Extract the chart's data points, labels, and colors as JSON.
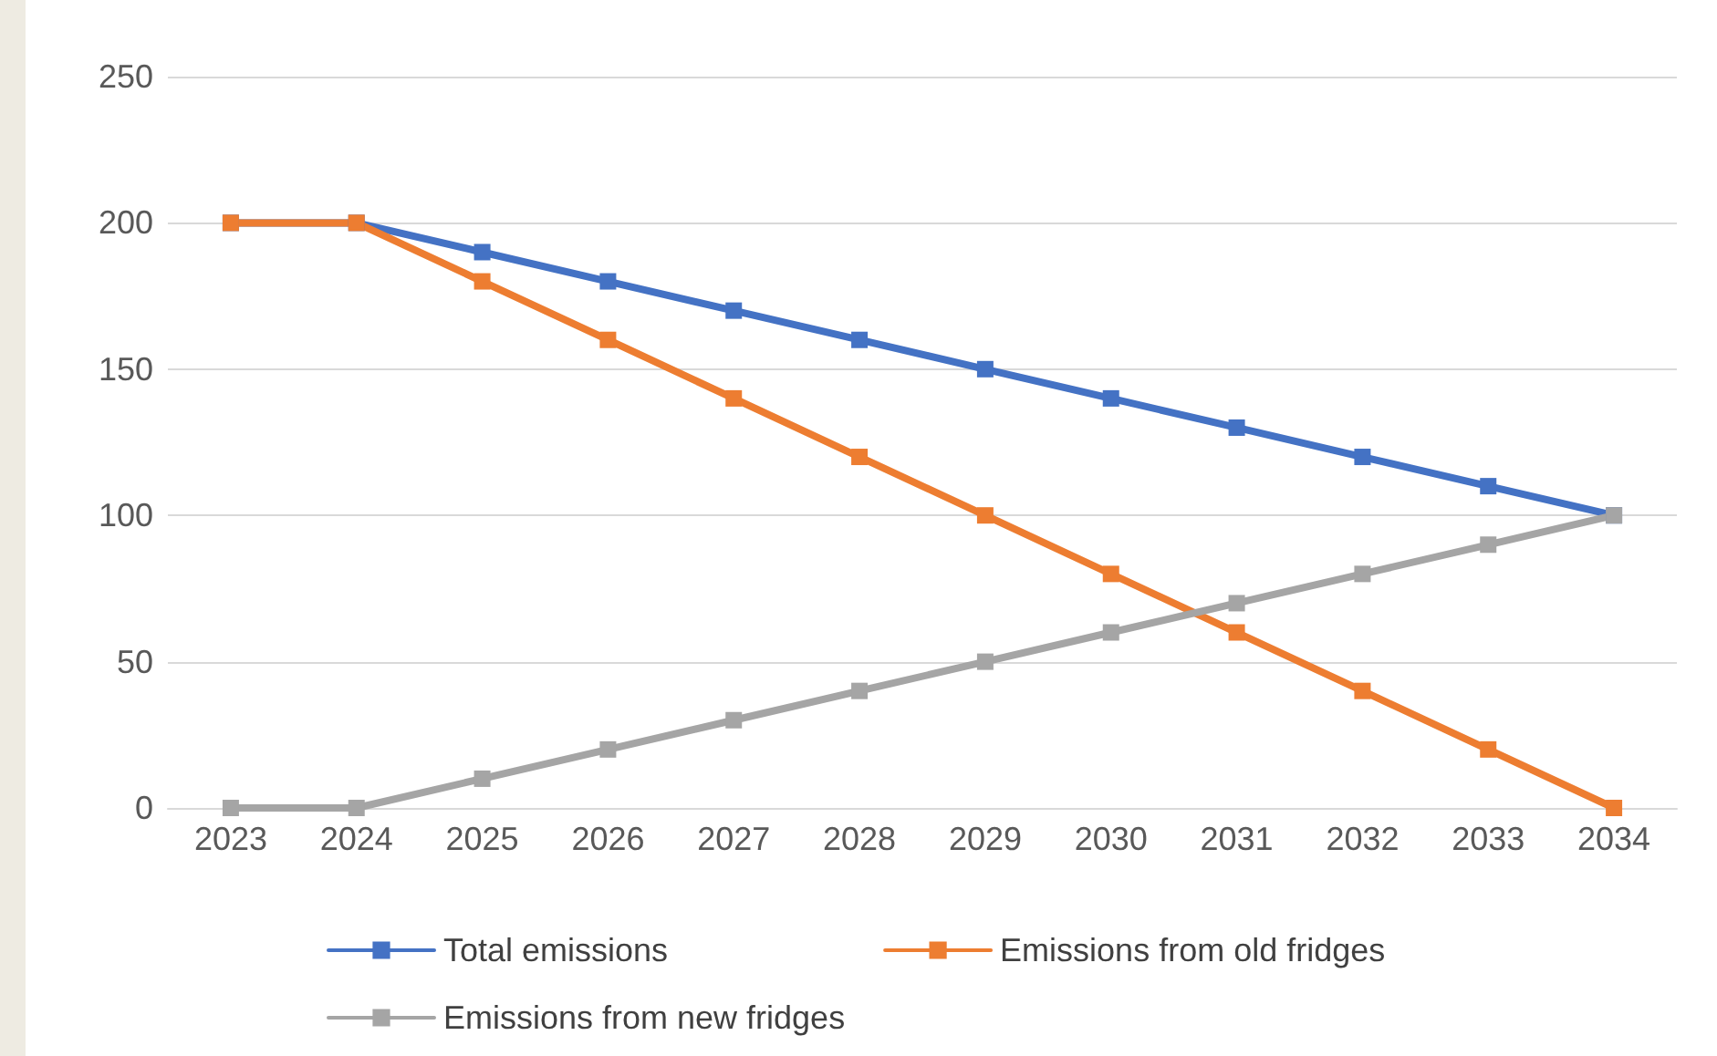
{
  "chart_data": {
    "type": "line",
    "categories": [
      "2023",
      "2024",
      "2025",
      "2026",
      "2027",
      "2028",
      "2029",
      "2030",
      "2031",
      "2032",
      "2033",
      "2034"
    ],
    "series": [
      {
        "name": "Total emissions",
        "color": "#4472c4",
        "values": [
          200,
          200,
          190,
          180,
          170,
          160,
          150,
          140,
          130,
          120,
          110,
          100
        ]
      },
      {
        "name": "Emissions from old fridges",
        "color": "#ed7d31",
        "values": [
          200,
          200,
          180,
          160,
          140,
          120,
          100,
          80,
          60,
          40,
          20,
          0
        ]
      },
      {
        "name": "Emissions from new fridges",
        "color": "#a5a5a5",
        "values": [
          0,
          0,
          10,
          20,
          30,
          40,
          50,
          60,
          70,
          80,
          90,
          100
        ]
      }
    ],
    "ylim": [
      0,
      250
    ],
    "yticks": [
      0,
      50,
      100,
      150,
      200,
      250
    ],
    "grid": "y",
    "legend": "bottom",
    "marker": "square",
    "line_style": "solid"
  }
}
